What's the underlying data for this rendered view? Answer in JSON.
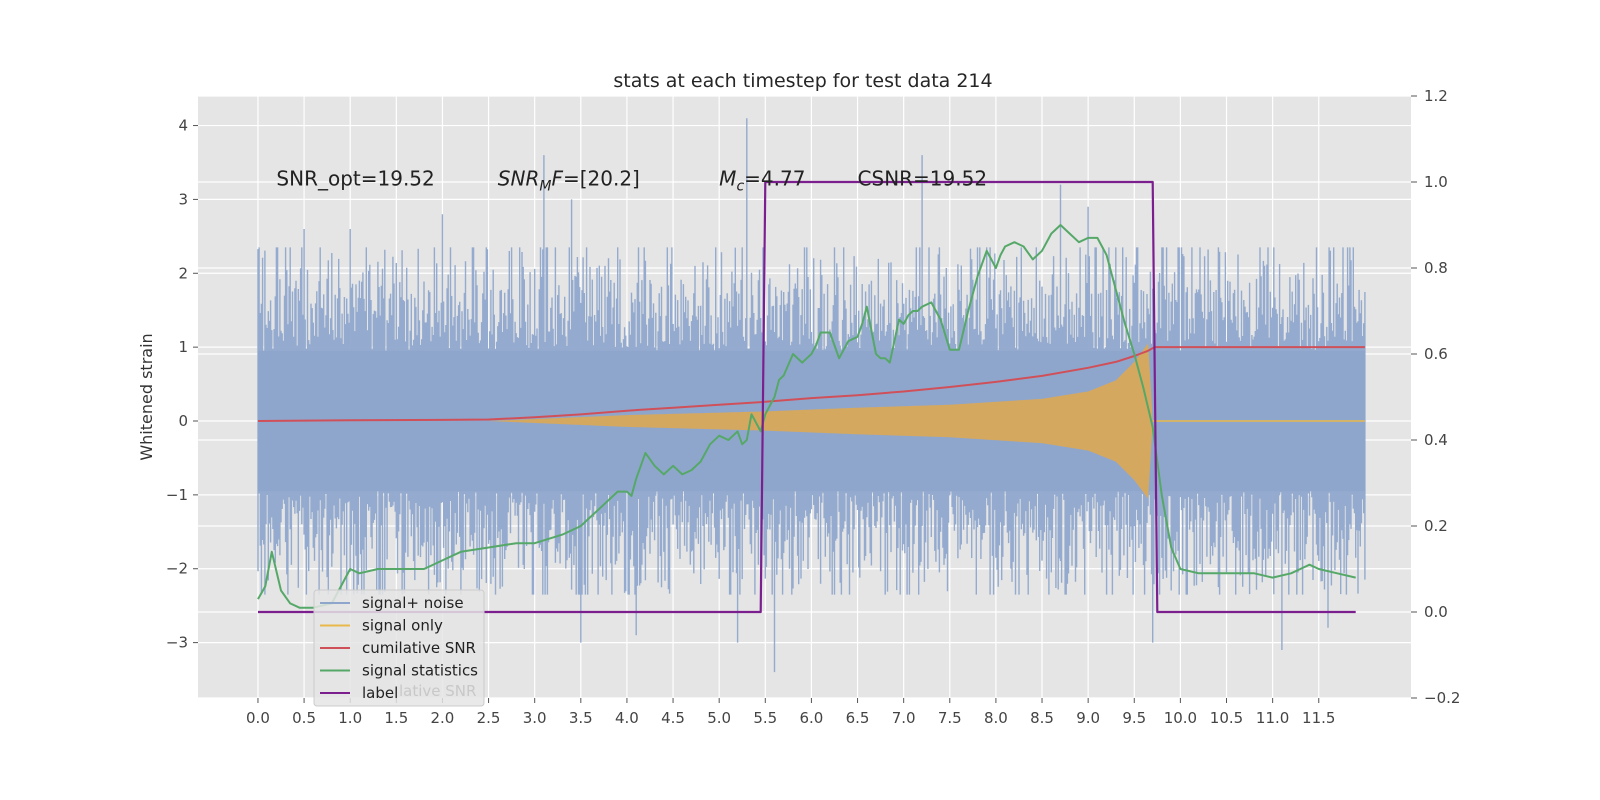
{
  "chart_data": {
    "type": "line",
    "title": "stats at each timestep for test data 214",
    "ylabel": "Whitened strain",
    "ylabel_right": "",
    "xlim": [
      -0.65,
      12.5
    ],
    "ylim": [
      -3.75,
      4.4
    ],
    "ylim_right": [
      -0.2,
      1.2
    ],
    "x_ticks": [
      0.0,
      0.5,
      1.0,
      1.5,
      2.0,
      2.5,
      3.0,
      3.5,
      4.0,
      4.5,
      5.0,
      5.5,
      6.0,
      6.5,
      7.0,
      7.5,
      8.0,
      8.5,
      9.0,
      9.5,
      10.0,
      10.5,
      11.0,
      11.5
    ],
    "x_tick_labels": [
      "0.0",
      "0.5",
      "1.0",
      "1.5",
      "2.0",
      "2.5",
      "3.0",
      "3.5",
      "4.0",
      "4.5",
      "5.0",
      "5.5",
      "6.0",
      "6.5",
      "7.0",
      "7.5",
      "8.0",
      "8.5",
      "9.0",
      "9.5",
      "10.0",
      "10.5",
      "11.0",
      "11.5"
    ],
    "y_ticks": [
      -3,
      -2,
      -1,
      0,
      1,
      2,
      3,
      4
    ],
    "y_tick_labels": [
      "−3",
      "−2",
      "−1",
      "0",
      "1",
      "2",
      "3",
      "4"
    ],
    "y_ticks_right": [
      -0.2,
      0.0,
      0.2,
      0.4,
      0.6,
      0.8,
      1.0,
      1.2
    ],
    "y_tick_labels_right": [
      "−0.2",
      "0.0",
      "0.2",
      "0.4",
      "0.6",
      "0.8",
      "1.0",
      "1.2"
    ],
    "grid": true,
    "legend_placement": "lower-left",
    "annotations": [
      {
        "text": "SNR_opt=19.52",
        "x": 0.2,
        "y": 3.3
      },
      {
        "text": "SNR_MF=[20.2]",
        "x": 2.6,
        "y": 3.3
      },
      {
        "text": "M_c=4.77",
        "x": 5.0,
        "y": 3.3
      },
      {
        "text": "CSNR=19.52",
        "x": 6.5,
        "y": 3.3
      }
    ],
    "series": [
      {
        "name": "signal+ noise",
        "axis": "left",
        "color": "#8fa6cc",
        "kind": "noise-band",
        "x_range": [
          0.0,
          12.0
        ],
        "typical_amplitude": 2.1,
        "peaks": [
          [
            0.5,
            2.6
          ],
          [
            1.0,
            2.6
          ],
          [
            2.0,
            2.8
          ],
          [
            3.1,
            3.6
          ],
          [
            3.4,
            3.0
          ],
          [
            5.3,
            4.1
          ],
          [
            7.2,
            3.6
          ],
          [
            8.7,
            3.2
          ],
          [
            9.0,
            2.9
          ],
          [
            5.2,
            -3.0
          ],
          [
            5.6,
            -3.4
          ],
          [
            3.5,
            -3.0
          ],
          [
            4.1,
            -2.9
          ],
          [
            11.1,
            -3.1
          ],
          [
            11.6,
            -2.8
          ],
          [
            9.7,
            -3.0
          ]
        ]
      },
      {
        "name": "signal only",
        "axis": "left",
        "color": "#e8b94a",
        "kind": "chirp-band",
        "start": 2.5,
        "merger": 9.7,
        "envelope": [
          [
            2.5,
            0.0
          ],
          [
            4.0,
            0.08
          ],
          [
            5.5,
            0.13
          ],
          [
            6.5,
            0.18
          ],
          [
            7.5,
            0.22
          ],
          [
            8.5,
            0.3
          ],
          [
            9.0,
            0.4
          ],
          [
            9.3,
            0.55
          ],
          [
            9.5,
            0.8
          ],
          [
            9.65,
            1.05
          ],
          [
            9.7,
            0.0
          ]
        ]
      },
      {
        "name": "cumilative SNR",
        "axis": "left",
        "color": "#d0505a",
        "x": [
          0,
          1,
          2,
          2.5,
          3,
          3.5,
          4,
          4.5,
          5,
          5.5,
          6,
          6.5,
          7,
          7.5,
          8,
          8.5,
          9,
          9.3,
          9.5,
          9.65,
          9.72,
          12.0
        ],
        "y": [
          0,
          0.01,
          0.015,
          0.02,
          0.05,
          0.09,
          0.14,
          0.18,
          0.22,
          0.26,
          0.31,
          0.35,
          0.4,
          0.46,
          0.53,
          0.61,
          0.72,
          0.8,
          0.88,
          0.95,
          1.0,
          1.0
        ]
      },
      {
        "name": "signal statistics",
        "axis": "right",
        "color": "#55a868",
        "x": [
          0.0,
          0.08,
          0.15,
          0.25,
          0.35,
          0.45,
          0.6,
          0.8,
          1.0,
          1.1,
          1.3,
          1.6,
          1.8,
          2.0,
          2.2,
          2.5,
          2.8,
          3.0,
          3.3,
          3.5,
          3.6,
          3.7,
          3.8,
          3.9,
          4.0,
          4.05,
          4.1,
          4.2,
          4.3,
          4.4,
          4.5,
          4.6,
          4.7,
          4.8,
          4.9,
          5.0,
          5.1,
          5.2,
          5.25,
          5.3,
          5.35,
          5.4,
          5.45,
          5.5,
          5.55,
          5.6,
          5.65,
          5.7,
          5.8,
          5.9,
          5.95,
          6.0,
          6.05,
          6.1,
          6.2,
          6.3,
          6.4,
          6.5,
          6.55,
          6.6,
          6.7,
          6.75,
          6.8,
          6.85,
          6.9,
          6.95,
          7.0,
          7.05,
          7.1,
          7.15,
          7.2,
          7.3,
          7.4,
          7.5,
          7.6,
          7.7,
          7.8,
          7.9,
          8.0,
          8.05,
          8.1,
          8.2,
          8.3,
          8.4,
          8.5,
          8.6,
          8.7,
          8.8,
          8.9,
          9.0,
          9.1,
          9.2,
          9.3,
          9.4,
          9.5,
          9.6,
          9.7,
          9.8,
          9.9,
          10.0,
          10.2,
          10.5,
          10.8,
          11.0,
          11.2,
          11.3,
          11.4,
          11.5,
          11.7,
          11.9
        ],
        "y": [
          0.03,
          0.06,
          0.14,
          0.05,
          0.02,
          0.01,
          0.01,
          0.02,
          0.1,
          0.09,
          0.1,
          0.1,
          0.1,
          0.12,
          0.14,
          0.15,
          0.16,
          0.16,
          0.18,
          0.2,
          0.22,
          0.24,
          0.26,
          0.28,
          0.28,
          0.27,
          0.31,
          0.37,
          0.34,
          0.32,
          0.34,
          0.32,
          0.33,
          0.35,
          0.39,
          0.41,
          0.4,
          0.42,
          0.39,
          0.4,
          0.46,
          0.44,
          0.42,
          0.46,
          0.48,
          0.5,
          0.54,
          0.55,
          0.6,
          0.58,
          0.59,
          0.6,
          0.62,
          0.65,
          0.65,
          0.59,
          0.63,
          0.64,
          0.67,
          0.71,
          0.6,
          0.59,
          0.59,
          0.58,
          0.63,
          0.68,
          0.67,
          0.69,
          0.7,
          0.7,
          0.71,
          0.72,
          0.68,
          0.61,
          0.61,
          0.7,
          0.78,
          0.84,
          0.8,
          0.83,
          0.85,
          0.86,
          0.85,
          0.82,
          0.84,
          0.88,
          0.9,
          0.88,
          0.86,
          0.87,
          0.87,
          0.83,
          0.75,
          0.67,
          0.6,
          0.52,
          0.43,
          0.27,
          0.15,
          0.1,
          0.09,
          0.09,
          0.09,
          0.08,
          0.09,
          0.1,
          0.11,
          0.1,
          0.09,
          0.08
        ]
      },
      {
        "name": "label",
        "axis": "right",
        "color": "#7b1f8f",
        "x": [
          0.0,
          5.45,
          5.5,
          9.7,
          9.75,
          11.9
        ],
        "y": [
          0,
          0,
          1,
          1,
          0,
          0
        ]
      }
    ]
  },
  "legend": {
    "items": [
      {
        "label": "signal+ noise",
        "color": "#8fa6cc"
      },
      {
        "label": "signal only",
        "color": "#e8b94a"
      },
      {
        "label": "cumilative SNR",
        "color": "#d0505a"
      },
      {
        "label": "signal statistics",
        "color": "#55a868"
      },
      {
        "label": "label",
        "color": "#7b1f8f"
      }
    ],
    "ghost_text": "lative SNR"
  }
}
